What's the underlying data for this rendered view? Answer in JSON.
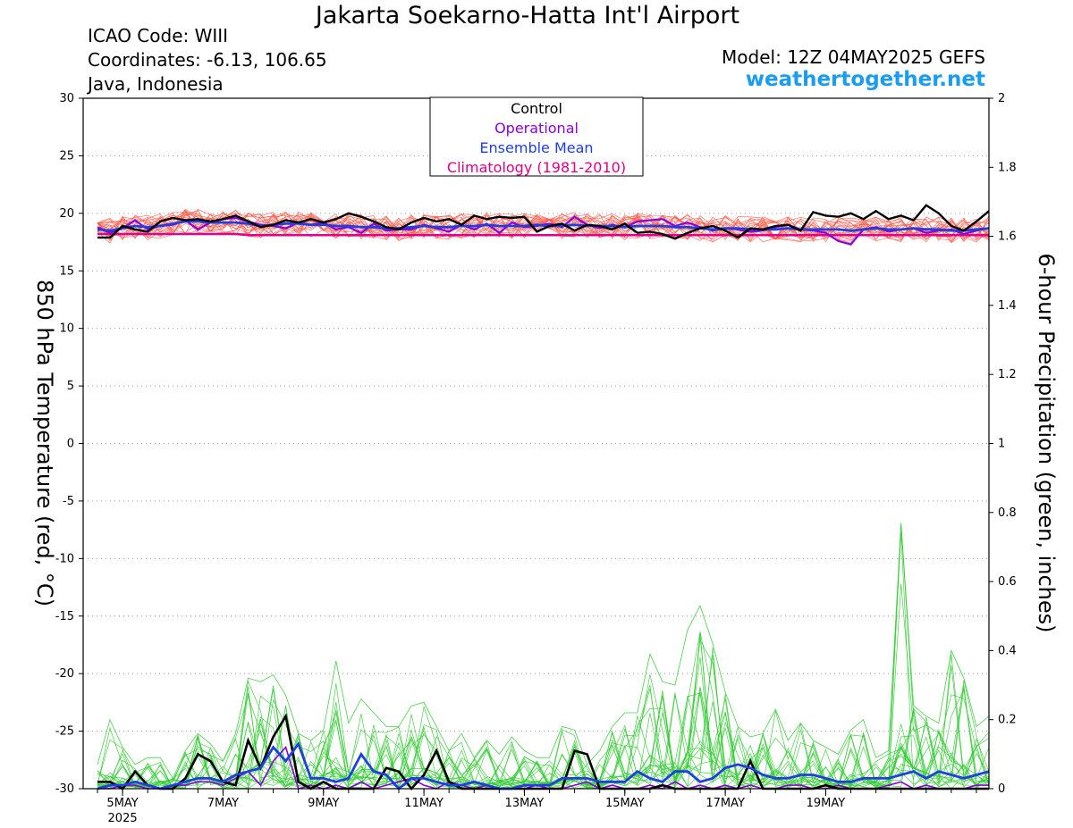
{
  "header": {
    "title": "Jakarta Soekarno-Hatta Int'l Airport",
    "icao": "ICAO Code: WIII",
    "coordinates": "Coordinates: -6.13, 106.65",
    "region": "Java, Indonesia",
    "model": "Model: 12Z 04MAY2025 GEFS",
    "site": "weathertogether.net"
  },
  "chart_data": {
    "type": "line",
    "x_unit": "hours after 12Z 04 May 2025, every 6 h",
    "x_start": "2025-05-04T12:00Z",
    "x_step_hours": 6,
    "x_tick_labels": [
      "5MAY",
      "7MAY",
      "9MAY",
      "11MAY",
      "13MAY",
      "15MAY",
      "17MAY",
      "19MAY"
    ],
    "x_tick_year": "2025",
    "y_left": {
      "label": "850 hPa Temperature (red, °C)",
      "range": [
        -30,
        30
      ],
      "ticks": [
        30,
        25,
        20,
        15,
        10,
        5,
        0,
        -5,
        -10,
        -15,
        -20,
        -25,
        -30
      ]
    },
    "y_right": {
      "label": "6-hour Precipitation (green, inches)",
      "range": [
        0,
        2
      ],
      "ticks": [
        "2",
        "1.8",
        "1.6",
        "1.4",
        "1.2",
        "1",
        "0.8",
        "0.6",
        "0.4",
        "0.2",
        "0"
      ]
    },
    "grid": "dotted",
    "legend": {
      "position": "top-center",
      "entries": [
        {
          "label": "Control",
          "color": "#000000"
        },
        {
          "label": "Operational",
          "color": "#8b00e0"
        },
        {
          "label": "Ensemble Mean",
          "color": "#1f3fe0"
        },
        {
          "label": "Climatology (1981-2010)",
          "color": "#e0008a"
        }
      ]
    },
    "colors": {
      "members_temp": "#ff5a4a",
      "members_precip": "#33cc33",
      "control": "#000000",
      "operational": "#8b00e0",
      "ensemble_mean": "#1f3fe0",
      "climatology": "#e0008a"
    },
    "series": {
      "temp_control": [
        17.9,
        17.9,
        18.9,
        18.6,
        18.4,
        19.3,
        19.6,
        19.4,
        19.5,
        19.3,
        19.5,
        19.8,
        19.3,
        18.8,
        19.0,
        19.4,
        19.2,
        19.5,
        19.2,
        19.5,
        20.0,
        19.7,
        19.3,
        18.8,
        18.6,
        19.2,
        19.6,
        19.3,
        19.5,
        19.0,
        19.8,
        19.5,
        19.7,
        19.6,
        19.7,
        18.4,
        18.9,
        19.1,
        18.5,
        19.0,
        18.9,
        18.6,
        19.1,
        18.3,
        18.4,
        18.2,
        17.8,
        18.3,
        18.7,
        18.9,
        18.5,
        17.9,
        18.7,
        18.6,
        18.9,
        19.0,
        18.5,
        20.1,
        19.8,
        19.7,
        20.0,
        19.5,
        20.2,
        19.5,
        19.8,
        19.4,
        20.7,
        20.0,
        18.9,
        18.5,
        19.3,
        20.2
      ],
      "temp_operational": [
        18.8,
        18.3,
        18.7,
        19.4,
        18.6,
        18.9,
        19.0,
        19.4,
        18.6,
        19.2,
        19.5,
        19.6,
        19.3,
        19.0,
        18.9,
        18.7,
        19.2,
        19.0,
        19.2,
        18.6,
        18.8,
        18.3,
        19.1,
        18.5,
        18.6,
        18.6,
        19.0,
        18.7,
        18.4,
        19.0,
        18.6,
        19.1,
        18.3,
        19.2,
        18.8,
        18.9,
        19.1,
        18.8,
        19.7,
        19.0,
        18.7,
        19.0,
        18.8,
        19.3,
        19.4,
        19.5,
        18.9,
        19.2,
        18.8,
        18.5,
        18.7,
        18.6,
        18.4,
        18.5,
        18.8,
        19.0,
        18.6,
        18.5,
        18.3,
        17.6,
        17.3,
        18.6,
        18.8,
        18.4,
        18.6,
        18.7,
        18.3,
        18.5,
        18.6,
        18.2,
        18.5,
        18.7
      ],
      "temp_ensemble_mean": [
        18.6,
        18.5,
        18.7,
        18.9,
        18.8,
        18.9,
        19.1,
        19.3,
        19.3,
        19.2,
        19.2,
        19.2,
        19.1,
        18.9,
        19.0,
        19.1,
        19.1,
        19.0,
        19.0,
        18.9,
        18.9,
        18.8,
        18.8,
        18.7,
        18.7,
        18.8,
        18.9,
        18.8,
        18.8,
        18.9,
        18.9,
        19.0,
        18.9,
        18.9,
        18.9,
        19.0,
        18.9,
        18.9,
        19.0,
        18.9,
        18.9,
        18.9,
        18.8,
        18.9,
        18.9,
        18.9,
        18.8,
        18.8,
        18.7,
        18.6,
        18.7,
        18.7,
        18.6,
        18.6,
        18.6,
        18.7,
        18.6,
        18.6,
        18.6,
        18.6,
        18.5,
        18.6,
        18.7,
        18.6,
        18.6,
        18.7,
        18.6,
        18.6,
        18.5,
        18.5,
        18.6,
        18.7
      ],
      "temp_climatology": [
        18.2,
        18.2,
        18.2,
        18.2,
        18.2,
        18.2,
        18.2,
        18.2,
        18.2,
        18.2,
        18.2,
        18.2,
        18.1,
        18.1,
        18.1,
        18.1,
        18.1,
        18.1,
        18.1,
        18.1,
        18.1,
        18.1,
        18.1,
        18.1,
        18.1,
        18.1,
        18.1,
        18.1,
        18.1,
        18.1,
        18.1,
        18.1,
        18.1,
        18.1,
        18.1,
        18.1,
        18.1,
        18.1,
        18.1,
        18.1,
        18.1,
        18.1,
        18.1,
        18.1,
        18.1,
        18.1,
        18.1,
        18.1,
        18.1,
        18.1,
        18.1,
        18.1,
        18.1,
        18.1,
        18.1,
        18.1,
        18.1,
        18.1,
        18.1,
        18.1,
        18.1,
        18.1,
        18.1,
        18.1,
        18.1,
        18.1,
        18.1,
        18.1,
        18.1,
        18.1,
        18.1,
        18.1
      ],
      "precip_control": [
        0.02,
        0.02,
        0.0,
        0.05,
        0.01,
        0.0,
        0.0,
        0.03,
        0.1,
        0.08,
        0.02,
        0.01,
        0.14,
        0.06,
        0.15,
        0.21,
        0.02,
        0.0,
        0.02,
        0.0,
        0.0,
        0.0,
        0.0,
        0.06,
        0.05,
        0.0,
        0.04,
        0.11,
        0.02,
        0.0,
        0.0,
        0.0,
        0.0,
        0.0,
        0.0,
        0.0,
        0.0,
        0.0,
        0.11,
        0.1,
        0.0,
        0.0,
        0.0,
        0.0,
        0.0,
        0.01,
        0.0,
        0.0,
        0.0,
        0.0,
        0.0,
        0.0,
        0.08,
        0.0,
        0.0,
        0.0,
        0.0,
        0.0,
        0.01,
        0.0,
        0.0,
        0.0,
        0.0,
        0.0,
        0.0,
        0.0,
        0.0,
        0.0,
        0.0,
        0.0,
        0.0,
        0.0
      ],
      "precip_operational": [
        0.0,
        0.0,
        0.01,
        0.01,
        0.0,
        0.0,
        0.01,
        0.01,
        0.02,
        0.02,
        0.01,
        0.03,
        0.05,
        0.01,
        0.08,
        0.12,
        0.0,
        0.01,
        0.0,
        0.01,
        0.0,
        0.02,
        0.0,
        0.01,
        0.02,
        0.03,
        0.01,
        0.0,
        0.02,
        0.01,
        0.0,
        0.01,
        0.0,
        0.0,
        0.0,
        0.01,
        0.0,
        0.0,
        0.01,
        0.02,
        0.0,
        0.01,
        0.0,
        0.0,
        0.01,
        0.0,
        0.02,
        0.0,
        0.01,
        0.0,
        0.01,
        0.0,
        0.01,
        0.0,
        0.0,
        0.01,
        0.01,
        0.0,
        0.0,
        0.01,
        0.0,
        0.0,
        0.0,
        0.01,
        0.02,
        0.0,
        0.01,
        0.0,
        0.0,
        0.0,
        0.01,
        0.01
      ],
      "precip_ensemble_mean": [
        0.0,
        0.01,
        0.01,
        0.02,
        0.01,
        0.0,
        0.01,
        0.02,
        0.03,
        0.03,
        0.02,
        0.04,
        0.05,
        0.06,
        0.12,
        0.08,
        0.13,
        0.03,
        0.03,
        0.02,
        0.03,
        0.1,
        0.05,
        0.04,
        0.0,
        0.03,
        0.03,
        0.02,
        0.01,
        0.01,
        0.02,
        0.01,
        0.0,
        0.0,
        0.01,
        0.01,
        0.01,
        0.03,
        0.03,
        0.03,
        0.02,
        0.02,
        0.02,
        0.05,
        0.03,
        0.02,
        0.05,
        0.05,
        0.02,
        0.03,
        0.06,
        0.07,
        0.06,
        0.04,
        0.03,
        0.03,
        0.04,
        0.04,
        0.03,
        0.02,
        0.02,
        0.03,
        0.03,
        0.03,
        0.04,
        0.05,
        0.03,
        0.05,
        0.04,
        0.03,
        0.04,
        0.05
      ],
      "precip_member_peaks": [
        0.07,
        0.2,
        0.12,
        0.07,
        0.09,
        0.09,
        0.03,
        0.11,
        0.16,
        0.13,
        0.08,
        0.16,
        0.32,
        0.31,
        0.33,
        0.27,
        0.16,
        0.14,
        0.17,
        0.37,
        0.19,
        0.26,
        0.22,
        0.18,
        0.18,
        0.24,
        0.25,
        0.18,
        0.11,
        0.16,
        0.09,
        0.14,
        0.1,
        0.15,
        0.11,
        0.09,
        0.09,
        0.18,
        0.17,
        0.07,
        0.11,
        0.18,
        0.22,
        0.22,
        0.39,
        0.31,
        0.3,
        0.46,
        0.53,
        0.42,
        0.28,
        0.18,
        0.15,
        0.16,
        0.23,
        0.14,
        0.19,
        0.14,
        0.12,
        0.1,
        0.17,
        0.2,
        0.09,
        0.11,
        0.77,
        0.24,
        0.21,
        0.19,
        0.4,
        0.32,
        0.18,
        0.21
      ]
    }
  }
}
